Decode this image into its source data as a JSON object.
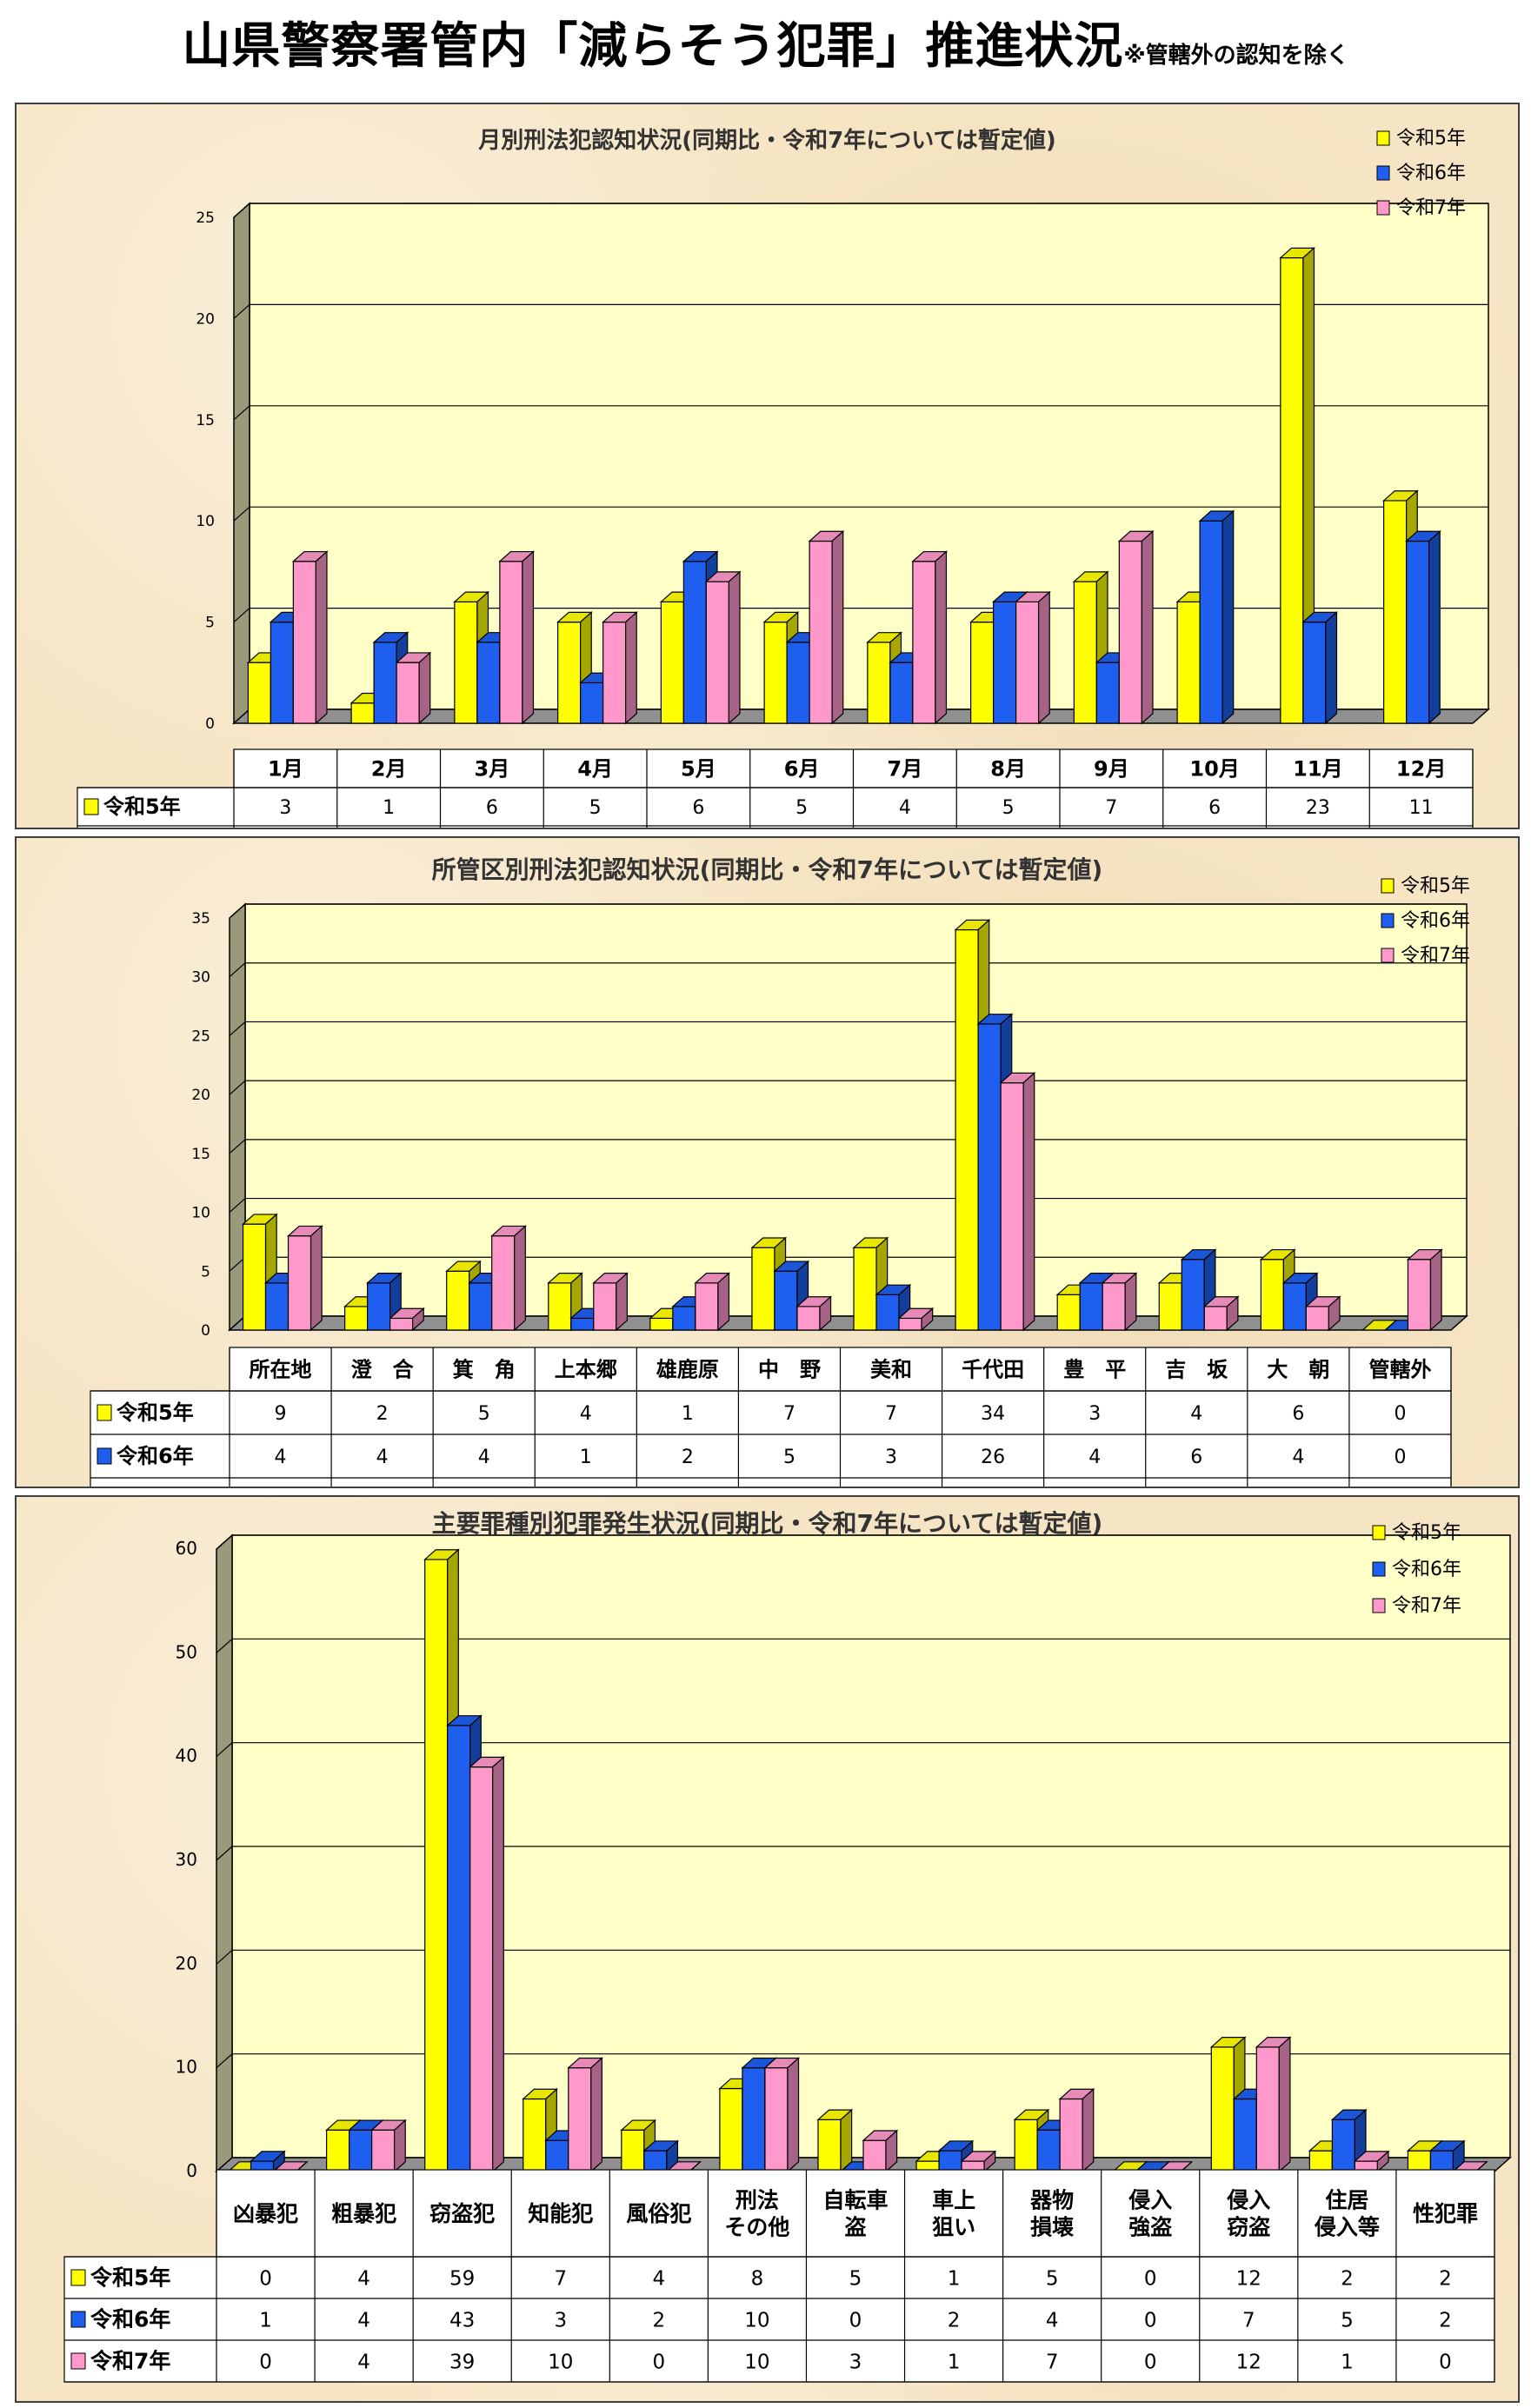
{
  "page": {
    "title": "山県警察署管内「減らそう犯罪」推進状況",
    "note": "※管轄外の認知を除く"
  },
  "colors": {
    "令和5年": "#ffff00",
    "令和6年": "#1f5ff0",
    "令和7年": "#ff99cc",
    "plot_bg": "#ffffc8",
    "panel_bg": "#f6e5c4"
  },
  "chart_data": [
    {
      "type": "bar",
      "title": "月別刑法犯認知状況(同期比・令和7年については暫定値)",
      "categories": [
        "1月",
        "2月",
        "3月",
        "4月",
        "5月",
        "6月",
        "7月",
        "8月",
        "9月",
        "10月",
        "11月",
        "12月"
      ],
      "series": [
        {
          "name": "令和5年",
          "values": [
            3,
            1,
            6,
            5,
            6,
            5,
            4,
            5,
            7,
            6,
            23,
            11
          ]
        },
        {
          "name": "令和6年",
          "values": [
            5,
            4,
            4,
            2,
            8,
            4,
            3,
            6,
            3,
            10,
            5,
            9
          ]
        },
        {
          "name": "令和7年",
          "values": [
            8,
            3,
            8,
            5,
            7,
            9,
            8,
            6,
            9,
            null,
            null,
            null
          ]
        }
      ],
      "ylim": [
        0,
        25
      ],
      "yticks": [
        0,
        5,
        10,
        15,
        20,
        25
      ],
      "grid": true,
      "legend": "top-right",
      "data_table": true
    },
    {
      "type": "bar",
      "title": "所管区別刑法犯認知状況(同期比・令和7年については暫定値)",
      "categories": [
        "所在地",
        "澄　合",
        "箕　角",
        "上本郷",
        "雄鹿原",
        "中　野",
        "美和",
        "千代田",
        "豊　平",
        "吉　坂",
        "大　朝",
        "管轄外"
      ],
      "series": [
        {
          "name": "令和5年",
          "values": [
            9,
            2,
            5,
            4,
            1,
            7,
            7,
            34,
            3,
            4,
            6,
            0
          ]
        },
        {
          "name": "令和6年",
          "values": [
            4,
            4,
            4,
            1,
            2,
            5,
            3,
            26,
            4,
            6,
            4,
            0
          ]
        },
        {
          "name": "令和7年",
          "values": [
            8,
            1,
            8,
            4,
            4,
            2,
            1,
            21,
            4,
            2,
            2,
            6
          ]
        }
      ],
      "ylim": [
        0,
        35
      ],
      "yticks": [
        0,
        5,
        10,
        15,
        20,
        25,
        30,
        35
      ],
      "grid": true,
      "legend": "top-right",
      "data_table": true
    },
    {
      "type": "bar",
      "title": "主要罪種別犯罪発生状況(同期比・令和7年については暫定値)",
      "categories": [
        "凶暴犯",
        "粗暴犯",
        "窃盗犯",
        "知能犯",
        "風俗犯",
        "刑法\nその他",
        "自転車\n盗",
        "車上\n狙い",
        "器物\n損壊",
        "侵入\n強盗",
        "侵入\n窃盗",
        "住居\n侵入等",
        "性犯罪"
      ],
      "series": [
        {
          "name": "令和5年",
          "values": [
            0,
            4,
            59,
            7,
            4,
            8,
            5,
            1,
            5,
            0,
            12,
            2,
            2
          ]
        },
        {
          "name": "令和6年",
          "values": [
            1,
            4,
            43,
            3,
            2,
            10,
            0,
            2,
            4,
            0,
            7,
            5,
            2
          ]
        },
        {
          "name": "令和7年",
          "values": [
            0,
            4,
            39,
            10,
            0,
            10,
            3,
            1,
            7,
            0,
            12,
            1,
            0
          ]
        }
      ],
      "ylim": [
        0,
        60
      ],
      "yticks": [
        0,
        10,
        20,
        30,
        40,
        50,
        60
      ],
      "grid": true,
      "legend": "top-right",
      "data_table": true
    }
  ]
}
